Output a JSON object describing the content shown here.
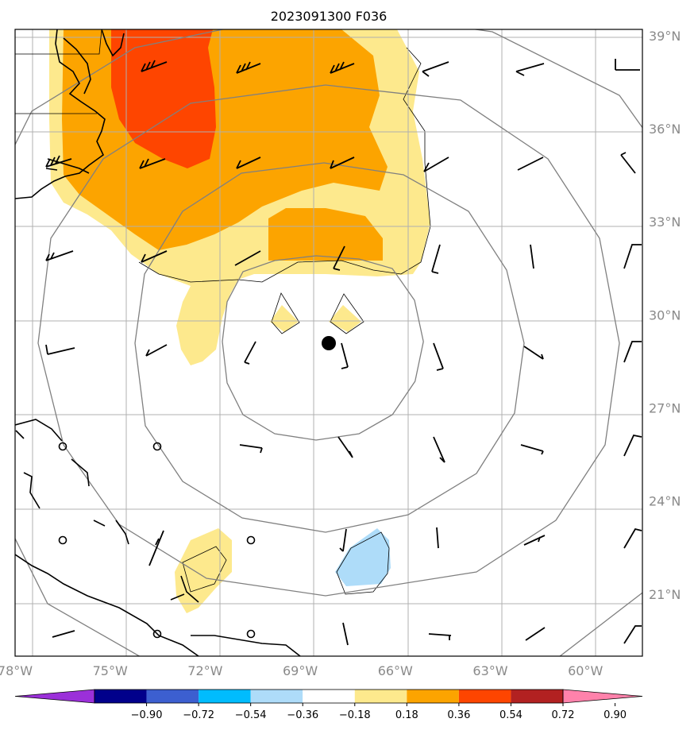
{
  "title": "2023091300 F036",
  "map": {
    "lon_range": [
      -78.0,
      -58.2
    ],
    "lat_range": [
      19.0,
      39.2
    ],
    "lon_ticks": [
      {
        "value": -78,
        "label": "78°W"
      },
      {
        "value": -75,
        "label": "75°W"
      },
      {
        "value": -72,
        "label": "72°W"
      },
      {
        "value": -69,
        "label": "69°W"
      },
      {
        "value": -66,
        "label": "66°W"
      },
      {
        "value": -63,
        "label": "63°W"
      },
      {
        "value": -60,
        "label": "60°W"
      }
    ],
    "lat_ticks": [
      {
        "value": 39,
        "label": "39°N"
      },
      {
        "value": 36,
        "label": "36°N"
      },
      {
        "value": 33,
        "label": "33°N"
      },
      {
        "value": 30,
        "label": "30°N"
      },
      {
        "value": 27,
        "label": "27°N"
      },
      {
        "value": 24,
        "label": "24°N"
      },
      {
        "value": 21,
        "label": "21°N"
      }
    ],
    "storm_center": {
      "lon": -68.5,
      "lat": 29.2
    },
    "range_rings_deg": [
      3.3,
      6.3,
      9.5,
      12.5
    ],
    "colors": {
      "land": "#000000",
      "grid": "#b0b0b0",
      "ring": "#808080",
      "yellow": "#fde98d",
      "orange": "#fca400",
      "red_orange": "#fe4500",
      "light_blue": "#aedcf9"
    }
  },
  "colorbar": {
    "levels": [
      "-0.90",
      "-0.72",
      "-0.54",
      "-0.36",
      "-0.18",
      "0.18",
      "0.36",
      "0.54",
      "0.72",
      "0.90"
    ],
    "colors": [
      "#9b30d9",
      "#01008b",
      "#3c5fd0",
      "#00bcfe",
      "#aedcf9",
      "#ffffff",
      "#fde98d",
      "#fca400",
      "#fe4500",
      "#b22121",
      "#ff82ab"
    ]
  }
}
